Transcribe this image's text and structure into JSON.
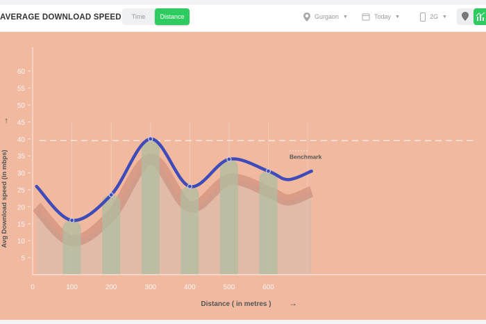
{
  "header": {
    "title": "AVERAGE DOWNLOAD SPEED VS",
    "toggle": {
      "options": [
        "Time",
        "Distance"
      ],
      "selected": "Distance"
    },
    "filters": {
      "location": "Gurgaon",
      "date": "Today",
      "network": "2G"
    }
  },
  "chart_data": {
    "type": "line",
    "xlabel": "Distance ( in metres )",
    "ylabel": "Avg Download speed (in mbps)",
    "x_ticks": [
      0,
      100,
      200,
      300,
      400,
      500,
      600
    ],
    "y_ticks": [
      5,
      10,
      15,
      20,
      25,
      30,
      35,
      40,
      45,
      50,
      55,
      60
    ],
    "xlim": [
      0,
      700
    ],
    "ylim": [
      0,
      63
    ],
    "series": [
      {
        "x": [
          10,
          100,
          200,
          300,
          400,
          500,
          600,
          650,
          710
        ],
        "values": [
          26,
          16,
          23.5,
          40,
          26,
          34,
          30.5,
          28,
          30.5
        ]
      }
    ],
    "bars": {
      "x": [
        100,
        200,
        300,
        400,
        500,
        600
      ],
      "values": [
        16,
        23.5,
        40,
        26,
        34,
        30.5
      ]
    },
    "benchmark": {
      "label": "Benchmark",
      "value": 39.5
    },
    "colors": {
      "background": "#f0b9a0",
      "line": "#3f4bb8",
      "bars": "#b9bf9f"
    }
  }
}
